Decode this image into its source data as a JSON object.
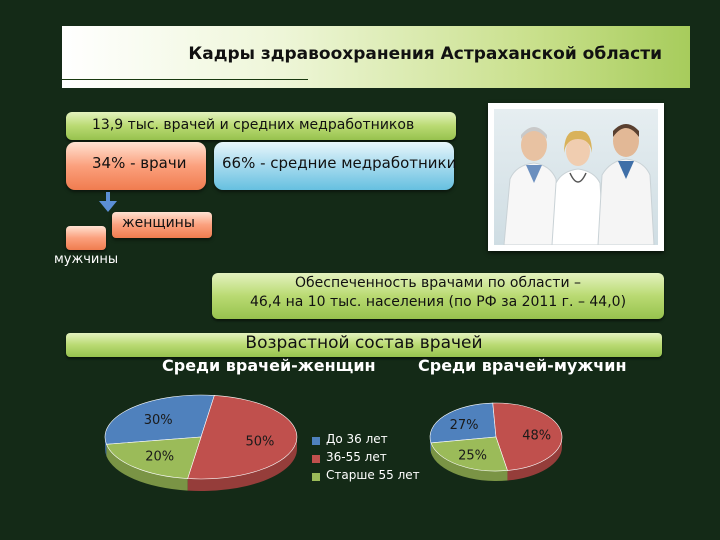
{
  "slide": {
    "title": "Кадры здравоохранения Астраханской области",
    "total_staff": "13,9 тыс. врачей и средних медработников",
    "doctors_share": "34% - врачи",
    "nurses_share": "66% - средние медработники",
    "women_label": "женщины",
    "men_label": "мужчины",
    "coverage_line1": "Обеспеченность врачами по области –",
    "coverage_line2": "46,4 на 10 тыс. населения (по РФ за 2011 г. – 44,0)",
    "age_header": "Возрастной состав врачей"
  },
  "photo": {
    "icon": "doctors-group-photo"
  },
  "colors": {
    "blue": "#4f81bd",
    "red": "#c0504d",
    "green": "#9bbb59",
    "background": "#142a17"
  },
  "chart_data": [
    {
      "type": "pie",
      "title": "Среди врачей-женщин",
      "labels": [
        "До 36 лет",
        "36-55 лет",
        "Старше 55 лет"
      ],
      "values": [
        30,
        50,
        20
      ],
      "value_labels": [
        "30%",
        "50%",
        "20%"
      ]
    },
    {
      "type": "pie",
      "title": "Среди врачей-мужчин",
      "labels": [
        "До 36 лет",
        "36-55 лет",
        "Старше 55 лет"
      ],
      "values": [
        27,
        48,
        25
      ],
      "value_labels": [
        "27%",
        "48%",
        "25%"
      ],
      "legend": "right"
    }
  ]
}
